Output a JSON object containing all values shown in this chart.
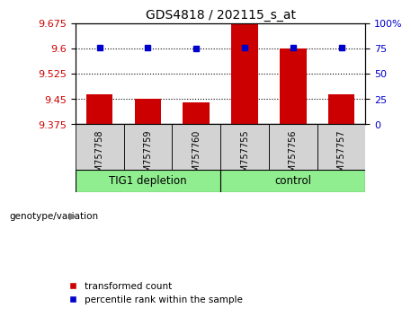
{
  "title": "GDS4818 / 202115_s_at",
  "samples": [
    "GSM757758",
    "GSM757759",
    "GSM757760",
    "GSM757755",
    "GSM757756",
    "GSM757757"
  ],
  "bar_values": [
    9.465,
    9.45,
    9.44,
    9.672,
    9.6,
    9.465
  ],
  "percentile_values": [
    76,
    76,
    75,
    76,
    76,
    76
  ],
  "ylim_left": [
    9.375,
    9.675
  ],
  "ylim_right": [
    0,
    100
  ],
  "yticks_left": [
    9.375,
    9.45,
    9.525,
    9.6,
    9.675
  ],
  "ytick_labels_left": [
    "9.375",
    "9.45",
    "9.525",
    "9.6",
    "9.675"
  ],
  "yticks_right": [
    0,
    25,
    50,
    75,
    100
  ],
  "ytick_labels_right": [
    "0",
    "25",
    "50",
    "75",
    "100%"
  ],
  "bar_color": "#cc0000",
  "dot_color": "#0000cc",
  "group1_label": "TIG1 depletion",
  "group2_label": "control",
  "group1_indices": [
    0,
    1,
    2
  ],
  "group2_indices": [
    3,
    4,
    5
  ],
  "group_bg_color": "#90ee90",
  "sample_bg_color": "#d3d3d3",
  "xlabel_label": "genotype/variation",
  "legend_bar_label": "transformed count",
  "legend_dot_label": "percentile rank within the sample",
  "title_fontsize": 10,
  "tick_fontsize": 8,
  "sample_fontsize": 7,
  "group_fontsize": 8.5
}
